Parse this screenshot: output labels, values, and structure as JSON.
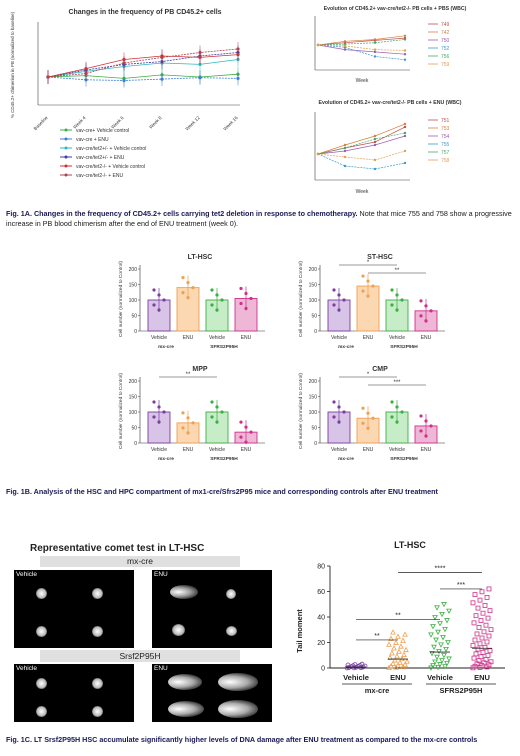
{
  "fig1a": {
    "left_chart": {
      "title": "Changes in the frequency of PB CD45.2+ cells",
      "ylabel": "% CD45.2+ chimerism in PB (normalized to baseline)",
      "categories": [
        "Baseline",
        "Week 4",
        "Week 6",
        "Week 8",
        "Week 12",
        "Week 16"
      ],
      "legend": [
        "vav-cre+ Vehicle control",
        "vav-cre + ENU",
        "vav-cre/tet2+/- + Vehicle control",
        "vav-cre/tet2+/- + ENU",
        "vav-cre/tet2-/- + Vehicle control",
        "vav-cre/tet2-/- + ENU"
      ]
    },
    "top_right_chart": {
      "title": "Evolution of CD45.2+ vav-cre/tet2-/- PB cells + PBS (WBC)",
      "xlabel": "Week",
      "legend": [
        "749",
        "742",
        "750",
        "752",
        "756",
        "759"
      ]
    },
    "bottom_right_chart": {
      "title": "Evolution of CD45.2+ vav-cre/tet2-/- PB cells + ENU (WBC)",
      "xlabel": "Week",
      "legend": [
        "751",
        "753",
        "754",
        "755",
        "757",
        "758"
      ]
    },
    "caption_lead": "Fig. 1A. Changes in the frequency of CD45.2+ cells carrying tet2 deletion in response to chemotherapy.",
    "caption_rest": "Note that mice 755 and 758 show a progressive increase in PB blood chimerism after the end of ENU treatment (week 0)."
  },
  "fig1b": {
    "ylabel": "Cell number (normalized to Control)",
    "xlabels": [
      "Vehicle",
      "ENU",
      "Vehicle",
      "ENU"
    ],
    "groups": [
      "mx-cre",
      "SFRS2P95H"
    ],
    "panels": [
      {
        "title": "LT-HSC",
        "values": [
          100,
          140,
          100,
          105
        ],
        "sig": []
      },
      {
        "title": "ST-HSC",
        "values": [
          100,
          145,
          100,
          65
        ],
        "sig": [
          "*",
          "**"
        ]
      },
      {
        "title": "MPP",
        "values": [
          100,
          65,
          100,
          35
        ],
        "sig": [
          "**"
        ]
      },
      {
        "title": "CMP",
        "values": [
          100,
          80,
          100,
          55
        ],
        "sig": [
          "*",
          "***"
        ]
      }
    ],
    "caption_lead": "Fig. 1B. Analysis of the HSC and HPC compartment of mx1-cre/Sfrs2P95 mice and corresponding controls after ENU treatment"
  },
  "fig1c": {
    "comet_title": "Representative comet test in LT-HSC",
    "mxcre_label": "mx-cre",
    "srsf2_label": "Srsf2P95H",
    "vehicle": "Vehicle",
    "enu": "ENU",
    "scatter": {
      "title": "LT-HSC",
      "ylabel": "Tail moment",
      "yticks": [
        "0",
        "20",
        "40",
        "60",
        "80"
      ],
      "xlabels": [
        "Vehicle",
        "ENU",
        "Vehicle",
        "ENU"
      ],
      "groups": [
        "mx-cre",
        "SFRS2P95H"
      ],
      "sig": [
        "**",
        "**",
        "***",
        "****"
      ]
    },
    "caption_lead": "Fig. 1C. LT Srsf2P95H HSC accumulate significantly higher levels of DNA damage after ENU treatment as compared to the mx-cre controls"
  },
  "colors": {
    "vehicle_purple": "#7b3fa0",
    "enu_orange": "#f0a050",
    "vehicle_green": "#3cb043",
    "enu_pink": "#d0308a"
  }
}
